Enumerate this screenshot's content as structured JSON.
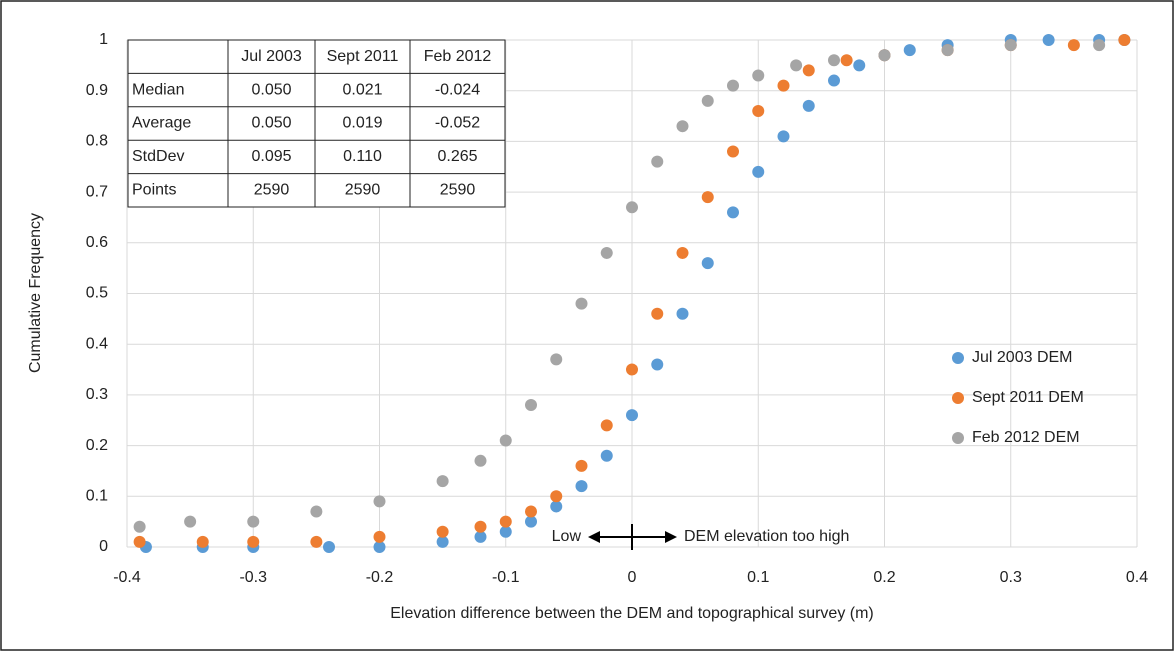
{
  "chart_data": {
    "type": "scatter",
    "x_label": "Elevation difference between the DEM and topographical survey (m)",
    "y_label": "Cumulative Frequency",
    "xlim": [
      -0.4,
      0.4
    ],
    "xticks": [
      -0.4,
      -0.3,
      -0.2,
      -0.1,
      0,
      0.1,
      0.2,
      0.3,
      0.4
    ],
    "ylim": [
      0,
      1
    ],
    "yticks": [
      0,
      0.1,
      0.2,
      0.3,
      0.4,
      0.5,
      0.6,
      0.7,
      0.8,
      0.9,
      1
    ],
    "grid": true,
    "legend": "right",
    "annotations": [
      "Low",
      "DEM elevation too high"
    ],
    "series": [
      {
        "name": "Jul 2003 DEM",
        "color": "#5b9bd5",
        "x": [
          -0.385,
          -0.34,
          -0.3,
          -0.24,
          -0.2,
          -0.15,
          -0.12,
          -0.1,
          -0.08,
          -0.06,
          -0.04,
          -0.02,
          0,
          0.02,
          0.04,
          0.06,
          0.08,
          0.1,
          0.12,
          0.14,
          0.16,
          0.18,
          0.2,
          0.22,
          0.25,
          0.3,
          0.33,
          0.37,
          0.39
        ],
        "y": [
          0,
          0,
          0,
          0,
          0,
          0.01,
          0.02,
          0.03,
          0.05,
          0.08,
          0.12,
          0.18,
          0.26,
          0.36,
          0.46,
          0.56,
          0.66,
          0.74,
          0.81,
          0.87,
          0.92,
          0.95,
          0.97,
          0.98,
          0.99,
          1,
          1,
          1,
          1
        ]
      },
      {
        "name": "Sept 2011 DEM",
        "color": "#ed7d31",
        "x": [
          -0.39,
          -0.34,
          -0.3,
          -0.25,
          -0.2,
          -0.15,
          -0.12,
          -0.1,
          -0.08,
          -0.06,
          -0.04,
          -0.02,
          0,
          0.02,
          0.04,
          0.06,
          0.08,
          0.1,
          0.12,
          0.14,
          0.17,
          0.2,
          0.25,
          0.3,
          0.35,
          0.39
        ],
        "y": [
          0.01,
          0.01,
          0.01,
          0.01,
          0.02,
          0.03,
          0.04,
          0.05,
          0.07,
          0.1,
          0.16,
          0.24,
          0.35,
          0.46,
          0.58,
          0.69,
          0.78,
          0.86,
          0.91,
          0.94,
          0.96,
          0.97,
          0.98,
          0.99,
          0.99,
          1
        ]
      },
      {
        "name": "Feb 2012 DEM",
        "color": "#a5a5a5",
        "x": [
          -0.39,
          -0.35,
          -0.3,
          -0.25,
          -0.2,
          -0.15,
          -0.12,
          -0.1,
          -0.08,
          -0.06,
          -0.04,
          -0.02,
          0,
          0.02,
          0.04,
          0.06,
          0.08,
          0.1,
          0.13,
          0.16,
          0.2,
          0.25,
          0.3,
          0.37
        ],
        "y": [
          0.04,
          0.05,
          0.05,
          0.07,
          0.09,
          0.13,
          0.17,
          0.21,
          0.28,
          0.37,
          0.48,
          0.58,
          0.67,
          0.76,
          0.83,
          0.88,
          0.91,
          0.93,
          0.95,
          0.96,
          0.97,
          0.98,
          0.99,
          0.99
        ]
      }
    ],
    "table": {
      "columns": [
        "Jul 2003",
        "Sept 2011",
        "Feb 2012"
      ],
      "rows": [
        {
          "label": "Median",
          "cells": [
            "0.050",
            "0.021",
            "-0.024"
          ]
        },
        {
          "label": "Average",
          "cells": [
            "0.050",
            "0.019",
            "-0.052"
          ]
        },
        {
          "label": "StdDev",
          "cells": [
            "0.095",
            "0.110",
            "0.265"
          ]
        },
        {
          "label": "Points",
          "cells": [
            "2590",
            "2590",
            "2590"
          ]
        }
      ]
    }
  }
}
